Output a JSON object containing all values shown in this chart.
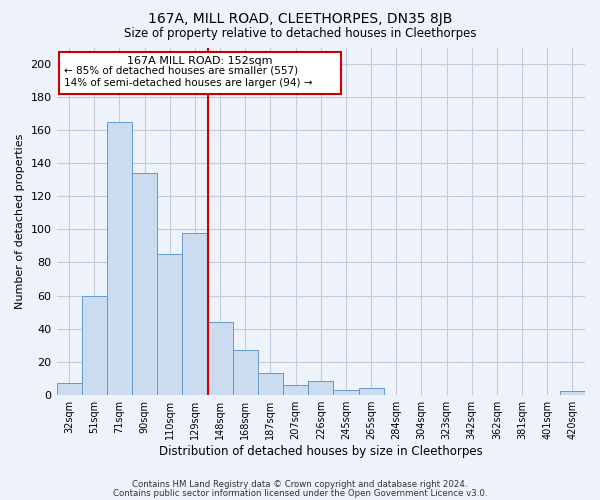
{
  "title": "167A, MILL ROAD, CLEETHORPES, DN35 8JB",
  "subtitle": "Size of property relative to detached houses in Cleethorpes",
  "xlabel": "Distribution of detached houses by size in Cleethorpes",
  "ylabel": "Number of detached properties",
  "bin_labels": [
    "32sqm",
    "51sqm",
    "71sqm",
    "90sqm",
    "110sqm",
    "129sqm",
    "148sqm",
    "168sqm",
    "187sqm",
    "207sqm",
    "226sqm",
    "245sqm",
    "265sqm",
    "284sqm",
    "304sqm",
    "323sqm",
    "342sqm",
    "362sqm",
    "381sqm",
    "401sqm",
    "420sqm"
  ],
  "bar_values": [
    7,
    60,
    165,
    134,
    85,
    98,
    44,
    27,
    13,
    6,
    8,
    3,
    4,
    0,
    0,
    0,
    0,
    0,
    0,
    0,
    2
  ],
  "bar_color": "#ccdcf0",
  "bar_edge_color": "#6699cc",
  "vline_color": "#cc0000",
  "ylim": [
    0,
    210
  ],
  "yticks": [
    0,
    20,
    40,
    60,
    80,
    100,
    120,
    140,
    160,
    180,
    200
  ],
  "annotation_title": "167A MILL ROAD: 152sqm",
  "annotation_line1": "← 85% of detached houses are smaller (557)",
  "annotation_line2": "14% of semi-detached houses are larger (94) →",
  "annotation_box_color": "#ffffff",
  "annotation_box_edge": "#cc0000",
  "footnote1": "Contains HM Land Registry data © Crown copyright and database right 2024.",
  "footnote2": "Contains public sector information licensed under the Open Government Licence v3.0.",
  "background_color": "#eef2fa",
  "grid_color": "#c0cce0"
}
